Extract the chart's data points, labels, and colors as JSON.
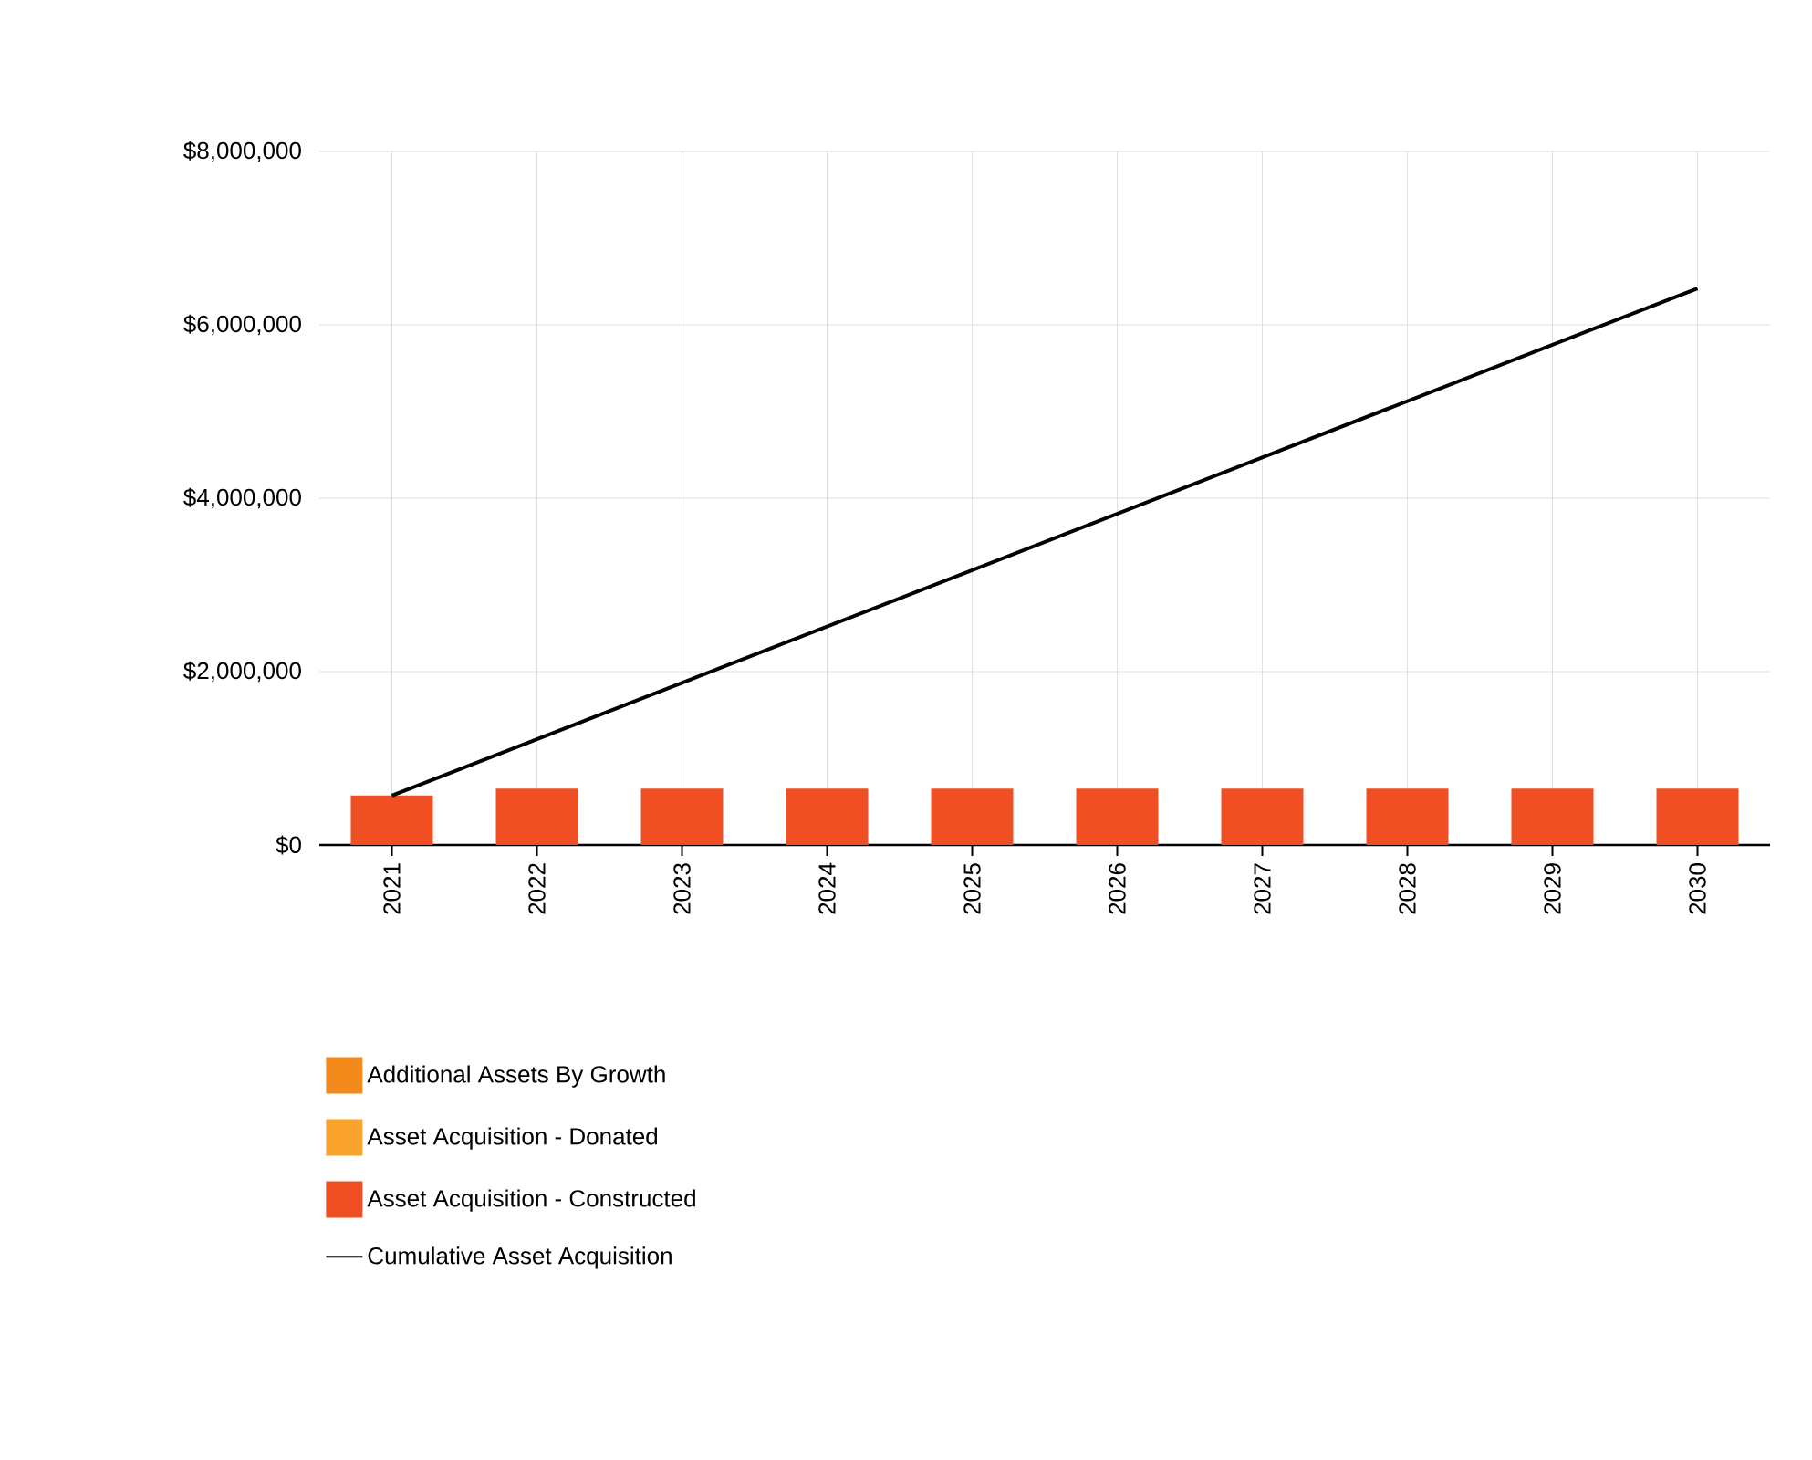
{
  "chart_data": {
    "type": "bar",
    "categories": [
      "2021",
      "2022",
      "2023",
      "2024",
      "2025",
      "2026",
      "2027",
      "2028",
      "2029",
      "2030"
    ],
    "series": [
      {
        "name": "Additional Assets By Growth",
        "color": "#f28a1c",
        "values": [
          0,
          0,
          0,
          0,
          0,
          0,
          0,
          0,
          0,
          0
        ]
      },
      {
        "name": "Asset Acquisition - Donated",
        "color": "#f9a32c",
        "values": [
          0,
          0,
          0,
          0,
          0,
          0,
          0,
          0,
          0,
          0
        ]
      },
      {
        "name": "Asset Acquisition - Constructed",
        "color": "#f04e23",
        "values": [
          570000,
          650000,
          650000,
          650000,
          650000,
          650000,
          650000,
          650000,
          650000,
          650000
        ]
      },
      {
        "name": "Cumulative Asset Acquisition",
        "type": "line",
        "color": "#000000",
        "marker": "none",
        "values": [
          570000,
          1220000,
          1870000,
          2520000,
          3170000,
          3820000,
          4470000,
          5120000,
          5770000,
          6420000
        ]
      }
    ],
    "ylim": [
      0,
      8000000
    ],
    "yticks": [
      {
        "value": 0,
        "label": "$0"
      },
      {
        "value": 2000000,
        "label": "$2,000,000"
      },
      {
        "value": 4000000,
        "label": "$4,000,000"
      },
      {
        "value": 6000000,
        "label": "$6,000,000"
      },
      {
        "value": 8000000,
        "label": "$8,000,000"
      }
    ],
    "grid": true,
    "legend": "bottom"
  }
}
